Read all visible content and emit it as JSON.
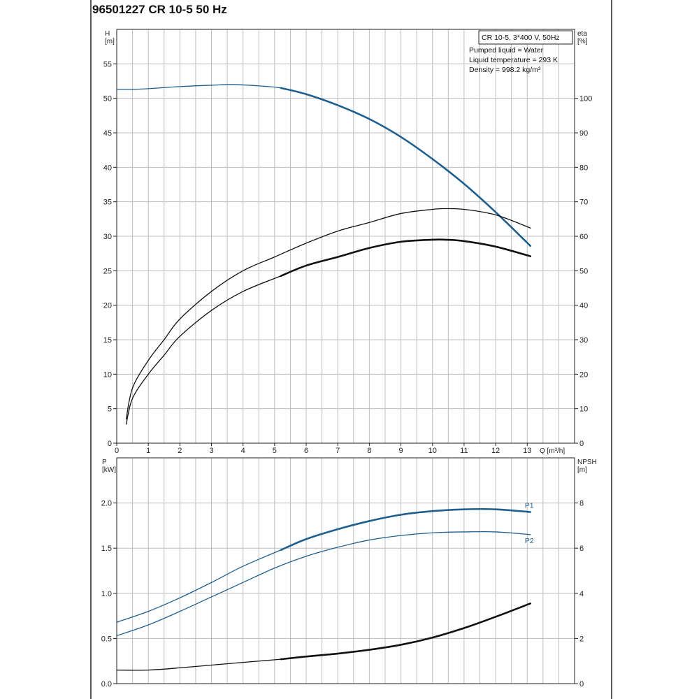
{
  "page_title": "96501227 CR 10-5 50 Hz",
  "info_box": {
    "model": "CR 10-5, 3*400 V, 50Hz",
    "pumped_liquid": "Pumped liquid = Water",
    "liquid_temperature": "Liquid temperature = 293 K",
    "density": "Density = 998.2 kg/m³"
  },
  "colors": {
    "blue": "#1f5f8f",
    "black": "#111111",
    "grid": "#bdbdbd"
  },
  "chart_data": [
    {
      "type": "line",
      "xlabel": "Q [m³/h]",
      "ylabel_left": "H\n[m]",
      "ylabel_right": "eta\n[%]",
      "x_ticks": [
        0,
        1,
        2,
        3,
        4,
        5,
        6,
        7,
        8,
        9,
        10,
        11,
        12,
        13
      ],
      "xlim": [
        0,
        14.5
      ],
      "ylim_left": [
        0,
        60
      ],
      "ylim_right": [
        0,
        120
      ],
      "y_ticks_left": [
        0,
        5,
        10,
        15,
        20,
        25,
        30,
        35,
        40,
        45,
        50,
        55
      ],
      "y_ticks_right": [
        0,
        10,
        20,
        30,
        40,
        50,
        60,
        70,
        80,
        90,
        100
      ],
      "grid": true,
      "series": [
        {
          "axis": "left",
          "color": "blue",
          "x": [
            0.0,
            0.5,
            1.0,
            2.0,
            3.0,
            3.7,
            4.5,
            5.2,
            6.0,
            7.0,
            8.0,
            9.0,
            10.0,
            11.0,
            12.0,
            13.1
          ],
          "y": [
            51.3,
            51.3,
            51.4,
            51.7,
            51.9,
            52.0,
            51.8,
            51.5,
            50.6,
            49.0,
            47.0,
            44.4,
            41.2,
            37.6,
            33.5,
            28.6
          ],
          "bold_from": 5.2
        },
        {
          "axis": "right",
          "color": "black",
          "x": [
            0.3,
            0.5,
            1.0,
            1.5,
            2.0,
            3.0,
            4.0,
            5.0,
            6.0,
            7.0,
            8.0,
            9.0,
            10.0,
            10.4,
            11.0,
            12.0,
            13.1
          ],
          "y": [
            7,
            16,
            24,
            30,
            36,
            44,
            50,
            54,
            58,
            61.5,
            64,
            66.6,
            67.8,
            68,
            67.8,
            66.2,
            62.4
          ],
          "bold_from": null
        },
        {
          "axis": "right",
          "color": "black",
          "x": [
            0.3,
            0.5,
            1.0,
            1.5,
            2.0,
            3.0,
            4.0,
            5.2,
            6.0,
            7.0,
            8.0,
            9.0,
            10.0,
            10.4,
            11.0,
            12.0,
            13.1
          ],
          "y": [
            5.5,
            13,
            20,
            25.5,
            31,
            38.5,
            44,
            48.5,
            51.5,
            54,
            56.6,
            58.4,
            59,
            59,
            58.6,
            57,
            54.2
          ],
          "bold_from": 5.2
        }
      ]
    },
    {
      "type": "line",
      "ylabel_left": "P\n[kW]",
      "ylabel_right": "NPSH\n[m]",
      "xlim": [
        0,
        14.5
      ],
      "ylim_left": [
        0,
        2.5
      ],
      "ylim_right": [
        0,
        10
      ],
      "y_ticks_left": [
        "0.0",
        "0.5",
        "1.0",
        "1.5",
        "2.0"
      ],
      "y_ticks_right": [
        0,
        2,
        4,
        6,
        8
      ],
      "grid": true,
      "series": [
        {
          "name": "P1",
          "axis": "left",
          "color": "blue",
          "x": [
            0.0,
            1.0,
            2.0,
            3.0,
            4.0,
            5.2,
            6.0,
            7.0,
            8.0,
            9.0,
            10.0,
            11.0,
            12.0,
            13.1
          ],
          "y": [
            0.68,
            0.8,
            0.95,
            1.12,
            1.3,
            1.48,
            1.6,
            1.71,
            1.8,
            1.87,
            1.91,
            1.93,
            1.93,
            1.9
          ],
          "bold_from": 5.2
        },
        {
          "name": "P2",
          "axis": "left",
          "color": "blue",
          "x": [
            0.0,
            1.0,
            2.0,
            3.0,
            4.0,
            5.0,
            6.0,
            7.0,
            8.0,
            9.0,
            10.0,
            11.0,
            12.0,
            13.1
          ],
          "y": [
            0.53,
            0.65,
            0.8,
            0.96,
            1.12,
            1.28,
            1.41,
            1.51,
            1.59,
            1.64,
            1.67,
            1.68,
            1.68,
            1.65
          ],
          "bold_from": null
        },
        {
          "name": "",
          "axis": "right",
          "color": "black",
          "x": [
            0.0,
            1.0,
            2.0,
            3.0,
            4.0,
            5.2,
            6.0,
            7.0,
            8.0,
            9.0,
            10.0,
            11.0,
            12.0,
            13.1
          ],
          "y": [
            0.6,
            0.6,
            0.7,
            0.82,
            0.94,
            1.08,
            1.2,
            1.33,
            1.5,
            1.72,
            2.04,
            2.46,
            2.96,
            3.55
          ],
          "bold_from": 5.2
        }
      ]
    }
  ]
}
